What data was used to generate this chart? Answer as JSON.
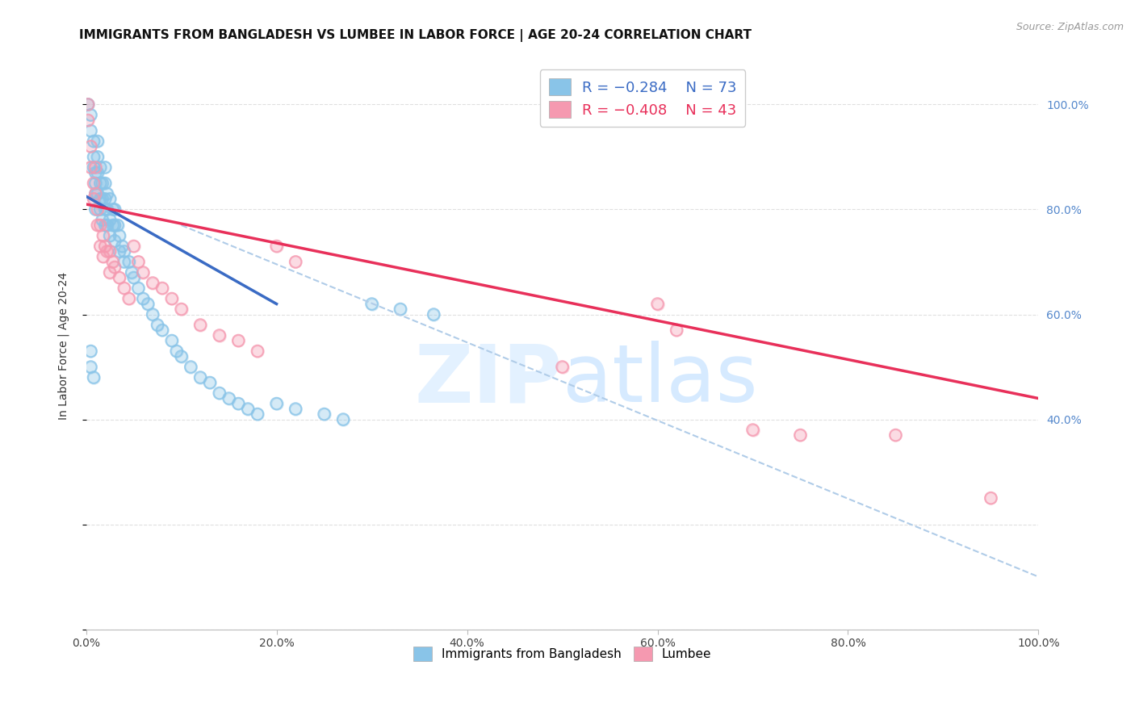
{
  "title": "IMMIGRANTS FROM BANGLADESH VS LUMBEE IN LABOR FORCE | AGE 20-24 CORRELATION CHART",
  "source": "Source: ZipAtlas.com",
  "ylabel": "In Labor Force | Age 20-24",
  "xlim": [
    0.0,
    1.0
  ],
  "ylim": [
    0.0,
    1.08
  ],
  "color_blue": "#89c4e8",
  "color_pink": "#f599b0",
  "color_blue_line": "#3a6bc4",
  "color_pink_line": "#e8305a",
  "color_dashed_line": "#b0cce8",
  "legend_r1": "R = -0.284",
  "legend_n1": "N = 73",
  "legend_r2": "R = -0.408",
  "legend_n2": "N = 43",
  "blue_scatter_x": [
    0.002,
    0.005,
    0.005,
    0.008,
    0.008,
    0.008,
    0.01,
    0.01,
    0.01,
    0.01,
    0.012,
    0.012,
    0.012,
    0.012,
    0.015,
    0.015,
    0.015,
    0.015,
    0.017,
    0.017,
    0.017,
    0.02,
    0.02,
    0.02,
    0.02,
    0.02,
    0.022,
    0.022,
    0.022,
    0.025,
    0.025,
    0.025,
    0.028,
    0.028,
    0.03,
    0.03,
    0.03,
    0.033,
    0.035,
    0.035,
    0.038,
    0.04,
    0.04,
    0.045,
    0.048,
    0.05,
    0.055,
    0.06,
    0.065,
    0.07,
    0.075,
    0.08,
    0.09,
    0.095,
    0.1,
    0.11,
    0.12,
    0.13,
    0.14,
    0.15,
    0.16,
    0.17,
    0.18,
    0.2,
    0.22,
    0.25,
    0.27,
    0.3,
    0.33,
    0.365,
    0.005,
    0.005,
    0.008
  ],
  "blue_scatter_y": [
    1.0,
    0.98,
    0.95,
    0.93,
    0.9,
    0.88,
    0.87,
    0.85,
    0.83,
    0.8,
    0.93,
    0.9,
    0.87,
    0.83,
    0.88,
    0.85,
    0.82,
    0.8,
    0.85,
    0.82,
    0.78,
    0.88,
    0.85,
    0.82,
    0.8,
    0.77,
    0.83,
    0.8,
    0.77,
    0.82,
    0.78,
    0.75,
    0.8,
    0.77,
    0.8,
    0.77,
    0.74,
    0.77,
    0.75,
    0.72,
    0.73,
    0.72,
    0.7,
    0.7,
    0.68,
    0.67,
    0.65,
    0.63,
    0.62,
    0.6,
    0.58,
    0.57,
    0.55,
    0.53,
    0.52,
    0.5,
    0.48,
    0.47,
    0.45,
    0.44,
    0.43,
    0.42,
    0.41,
    0.43,
    0.42,
    0.41,
    0.4,
    0.62,
    0.61,
    0.6,
    0.53,
    0.5,
    0.48
  ],
  "pink_scatter_x": [
    0.002,
    0.002,
    0.005,
    0.005,
    0.008,
    0.008,
    0.01,
    0.01,
    0.012,
    0.012,
    0.015,
    0.015,
    0.018,
    0.018,
    0.02,
    0.022,
    0.025,
    0.025,
    0.028,
    0.03,
    0.035,
    0.04,
    0.045,
    0.05,
    0.055,
    0.06,
    0.07,
    0.08,
    0.09,
    0.1,
    0.12,
    0.14,
    0.16,
    0.18,
    0.2,
    0.22,
    0.6,
    0.62,
    0.7,
    0.75,
    0.85,
    0.95,
    0.5
  ],
  "pink_scatter_y": [
    1.0,
    0.97,
    0.92,
    0.88,
    0.85,
    0.82,
    0.88,
    0.83,
    0.8,
    0.77,
    0.77,
    0.73,
    0.75,
    0.71,
    0.73,
    0.72,
    0.72,
    0.68,
    0.7,
    0.69,
    0.67,
    0.65,
    0.63,
    0.73,
    0.7,
    0.68,
    0.66,
    0.65,
    0.63,
    0.61,
    0.58,
    0.56,
    0.55,
    0.53,
    0.73,
    0.7,
    0.62,
    0.57,
    0.38,
    0.37,
    0.37,
    0.25,
    0.5
  ],
  "blue_line_x": [
    0.0,
    0.2
  ],
  "blue_line_y": [
    0.825,
    0.62
  ],
  "pink_line_x": [
    0.0,
    1.0
  ],
  "pink_line_y": [
    0.81,
    0.44
  ],
  "dashed_line_x": [
    0.1,
    1.0
  ],
  "dashed_line_y": [
    0.77,
    0.1
  ],
  "background_color": "#ffffff",
  "grid_color": "#e0e0e0",
  "title_fontsize": 11,
  "tick_fontsize": 10,
  "legend_fontsize": 13,
  "right_tick_color": "#5588cc"
}
